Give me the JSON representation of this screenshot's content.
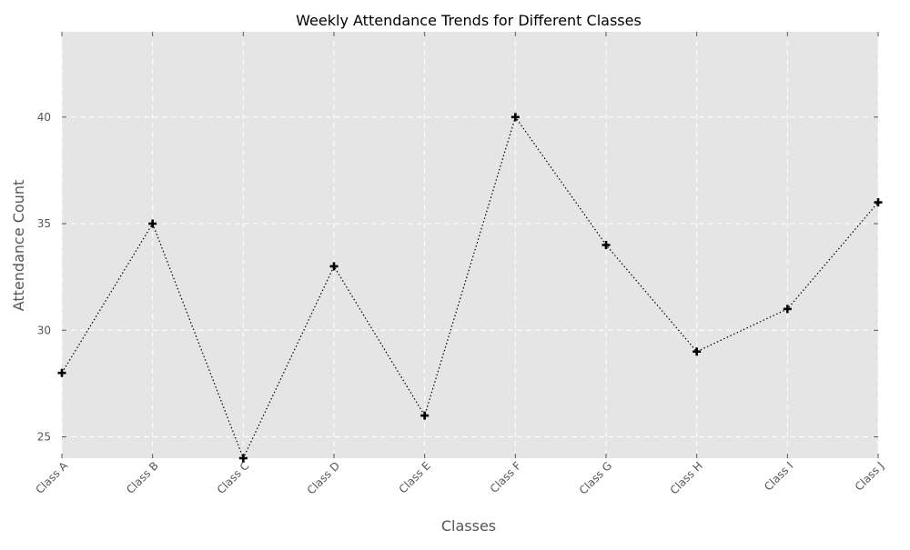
{
  "chart_data": {
    "type": "line",
    "title": "Weekly Attendance Trends for Different Classes",
    "xlabel": "Classes",
    "ylabel": "Attendance Count",
    "categories": [
      "Class A",
      "Class B",
      "Class C",
      "Class D",
      "Class E",
      "Class F",
      "Class G",
      "Class H",
      "Class I",
      "Class J"
    ],
    "series": [
      {
        "values": [
          28,
          35,
          24,
          33,
          26,
          40,
          34,
          29,
          31,
          36
        ]
      }
    ],
    "y_ticks": [
      25,
      30,
      35,
      40
    ],
    "ylim": [
      24,
      44
    ],
    "grid": true,
    "line_style": "dotted",
    "marker": "plus",
    "colors": {
      "plot_background": "#e5e5e5",
      "grid": "#ffffff",
      "line": "#000000",
      "text": "#555555"
    }
  }
}
